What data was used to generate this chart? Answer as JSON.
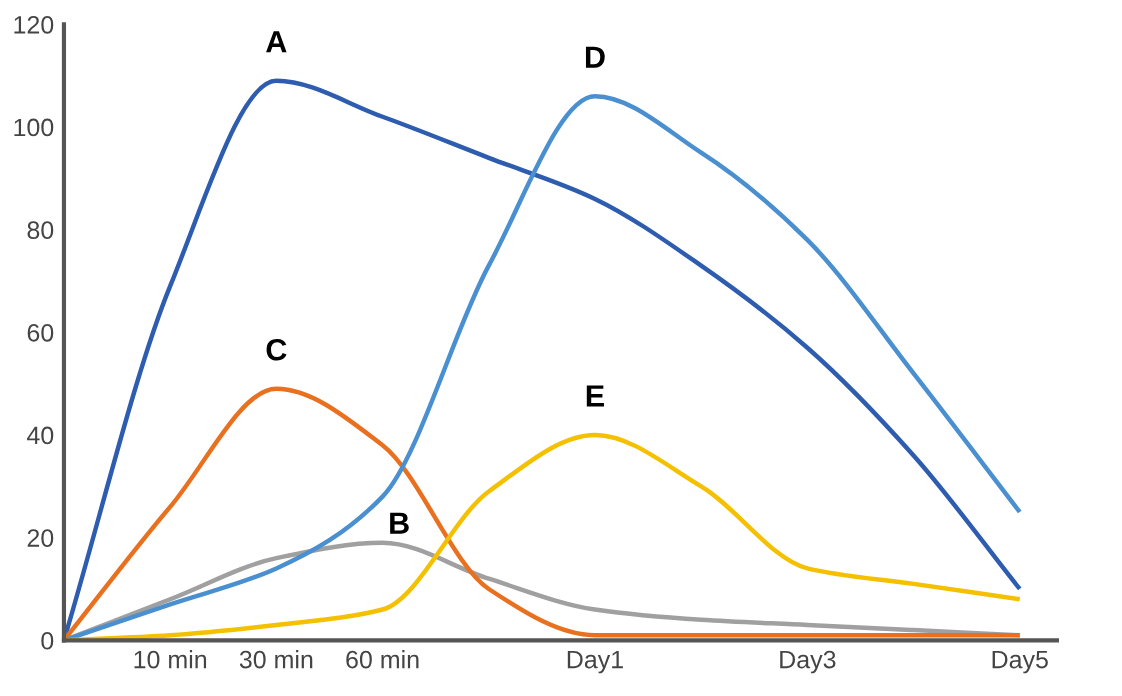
{
  "chart_data": {
    "type": "line",
    "categories": [
      null,
      "10 min",
      "30 min",
      "60 min",
      null,
      "Day1",
      null,
      "Day3",
      null,
      "Day5"
    ],
    "ylim": [
      0,
      120
    ],
    "yticks": [
      0,
      20,
      40,
      60,
      80,
      100,
      120
    ],
    "grid": false,
    "legend": false,
    "marker": "none",
    "line_style": "solid",
    "series": [
      {
        "name": "A",
        "color": "#2e5db0",
        "values": [
          0,
          69,
          109,
          102,
          94,
          86,
          73,
          57,
          36,
          10
        ]
      },
      {
        "name": "B",
        "color": "#a0a0a0",
        "values": [
          0,
          8,
          16,
          19,
          12,
          6,
          4,
          3,
          2,
          1
        ]
      },
      {
        "name": "C",
        "color": "#e8701f",
        "values": [
          0,
          26,
          49,
          38,
          10,
          1,
          1,
          1,
          1,
          1
        ]
      },
      {
        "name": "D",
        "color": "#4a90d0",
        "values": [
          0,
          7,
          14,
          28,
          73,
          106,
          95,
          78,
          52,
          25
        ]
      },
      {
        "name": "E",
        "color": "#f5c000",
        "values": [
          0,
          1,
          3,
          6,
          29,
          40,
          30,
          14,
          11,
          8
        ]
      }
    ]
  }
}
